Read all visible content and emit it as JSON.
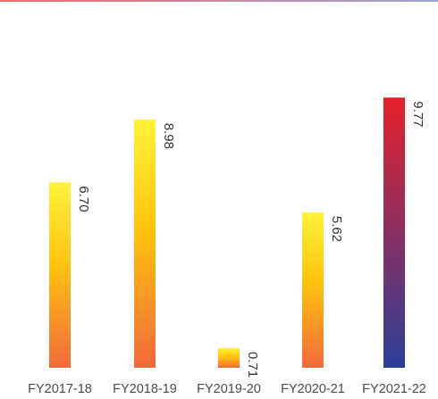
{
  "chart_data": {
    "type": "bar",
    "categories": [
      "FY2017-18",
      "FY2018-19",
      "FY2019-20",
      "FY2020-21",
      "FY2021-22"
    ],
    "values": [
      6.7,
      8.98,
      0.71,
      5.62,
      9.77
    ],
    "value_labels": [
      "6.70",
      "8.98",
      "0.71",
      "5.62",
      "9.77"
    ],
    "title": "",
    "xlabel": "",
    "ylabel": "",
    "ylim": [
      0,
      11.2
    ],
    "grid": false,
    "legend": "none",
    "highlight_index": 4
  },
  "colors": {
    "bar_top": "#fff23a",
    "bar_mid": "#ffc20e",
    "bar_bottom": "#f26a3c",
    "highlight_top": "#e8202a",
    "highlight_bottom": "#2b3f99",
    "baseline_left": "#e8202a",
    "baseline_right": "#3a4aa0",
    "label_text": "#333333",
    "tick_text": "#4a4a4a",
    "top_rule_left": "#f26a6a",
    "top_rule_right": "#9aa3d6"
  }
}
